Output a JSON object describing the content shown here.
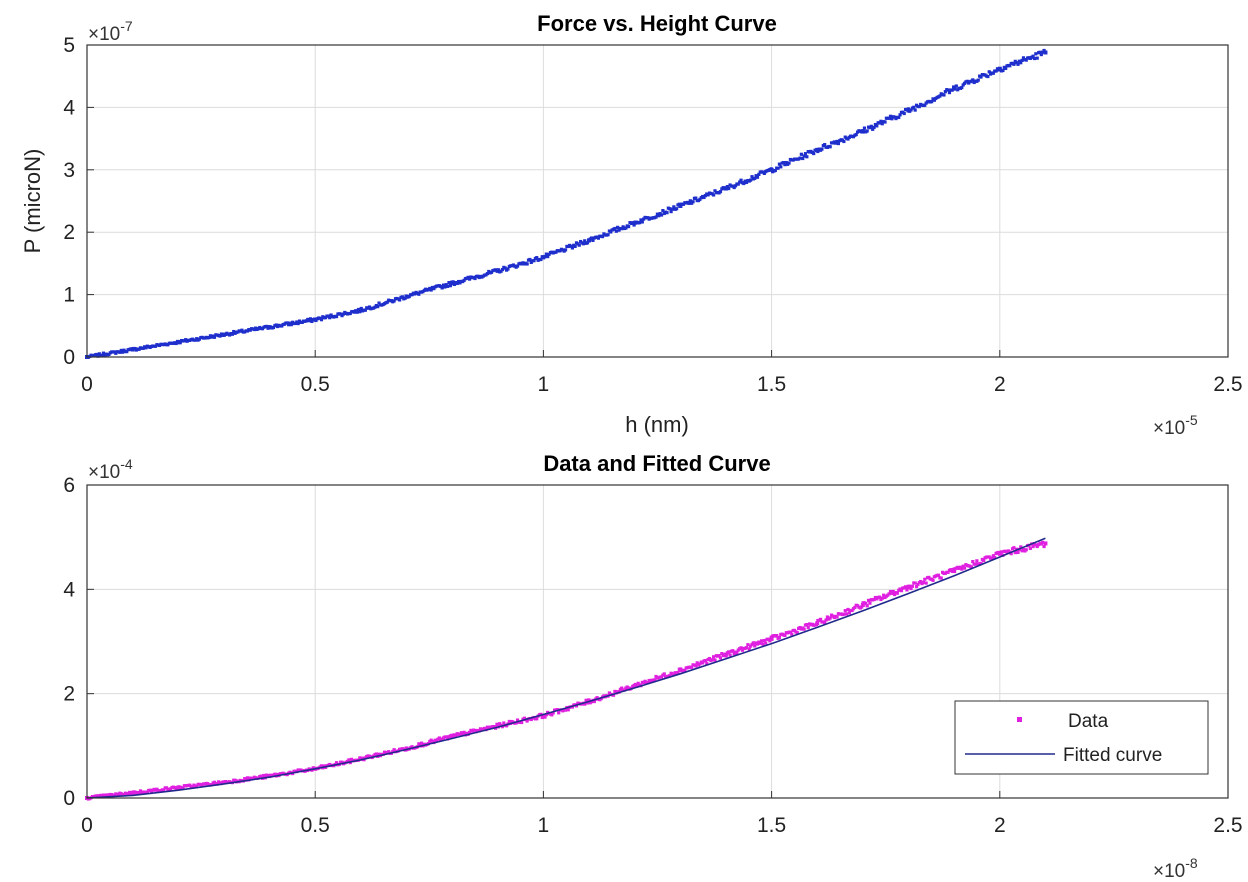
{
  "chart_data": [
    {
      "type": "scatter",
      "title": "Force vs. Height Curve",
      "xlabel": "h (nm)",
      "ylabel": "P (microN)",
      "x_exponent_label": "×10",
      "x_exponent_power": "-5",
      "y_exponent_label": "×10",
      "y_exponent_power": "-7",
      "xlim": [
        0,
        2.5
      ],
      "ylim": [
        0,
        5
      ],
      "xticks": [
        "0",
        "0.5",
        "1",
        "1.5",
        "2",
        "2.5"
      ],
      "yticks": [
        "0",
        "1",
        "2",
        "3",
        "4",
        "5"
      ],
      "grid": true,
      "color": "#1f2fcc",
      "series": [
        {
          "x": [
            0.0,
            0.1,
            0.2,
            0.3,
            0.4,
            0.5,
            0.6,
            0.7,
            0.8,
            0.9,
            1.0,
            1.1,
            1.2,
            1.3,
            1.4,
            1.5,
            1.6,
            1.7,
            1.8,
            1.9,
            2.0,
            2.1
          ],
          "y": [
            0.0,
            0.12,
            0.24,
            0.36,
            0.48,
            0.6,
            0.75,
            0.97,
            1.18,
            1.38,
            1.6,
            1.87,
            2.15,
            2.42,
            2.7,
            3.0,
            3.32,
            3.62,
            3.95,
            4.3,
            4.62,
            4.88
          ]
        }
      ]
    },
    {
      "type": "scatter",
      "title": "Data and Fitted Curve",
      "xlabel": "",
      "ylabel": "",
      "x_exponent_label": "×10",
      "x_exponent_power": "-8",
      "y_exponent_label": "×10",
      "y_exponent_power": "-4",
      "xlim": [
        0,
        2.5
      ],
      "ylim": [
        0,
        6
      ],
      "xticks": [
        "0",
        "0.5",
        "1",
        "1.5",
        "2",
        "2.5"
      ],
      "yticks": [
        "0",
        "2",
        "4",
        "6"
      ],
      "grid": true,
      "legend": "bottom-right",
      "series": [
        {
          "name": "Data",
          "color": "#e020e0",
          "style": "markers",
          "x": [
            0.0,
            0.1,
            0.2,
            0.3,
            0.4,
            0.5,
            0.6,
            0.7,
            0.8,
            0.9,
            1.0,
            1.1,
            1.2,
            1.3,
            1.4,
            1.5,
            1.6,
            1.7,
            1.8,
            1.9,
            2.0,
            2.1
          ],
          "y": [
            0.0,
            0.1,
            0.2,
            0.3,
            0.42,
            0.56,
            0.75,
            0.95,
            1.18,
            1.38,
            1.58,
            1.85,
            2.15,
            2.45,
            2.75,
            3.05,
            3.35,
            3.7,
            4.05,
            4.35,
            4.68,
            4.88
          ]
        },
        {
          "name": "Fitted curve",
          "color": "#202a8c",
          "style": "line",
          "x": [
            0.0,
            0.1,
            0.2,
            0.3,
            0.4,
            0.5,
            0.6,
            0.7,
            0.8,
            0.9,
            1.0,
            1.1,
            1.2,
            1.3,
            1.4,
            1.5,
            1.6,
            1.7,
            1.8,
            1.9,
            2.0,
            2.1
          ],
          "y": [
            0.0,
            0.05,
            0.15,
            0.27,
            0.4,
            0.56,
            0.73,
            0.93,
            1.14,
            1.36,
            1.6,
            1.85,
            2.11,
            2.38,
            2.67,
            2.96,
            3.27,
            3.59,
            3.92,
            4.26,
            4.62,
            4.98
          ]
        }
      ]
    }
  ]
}
